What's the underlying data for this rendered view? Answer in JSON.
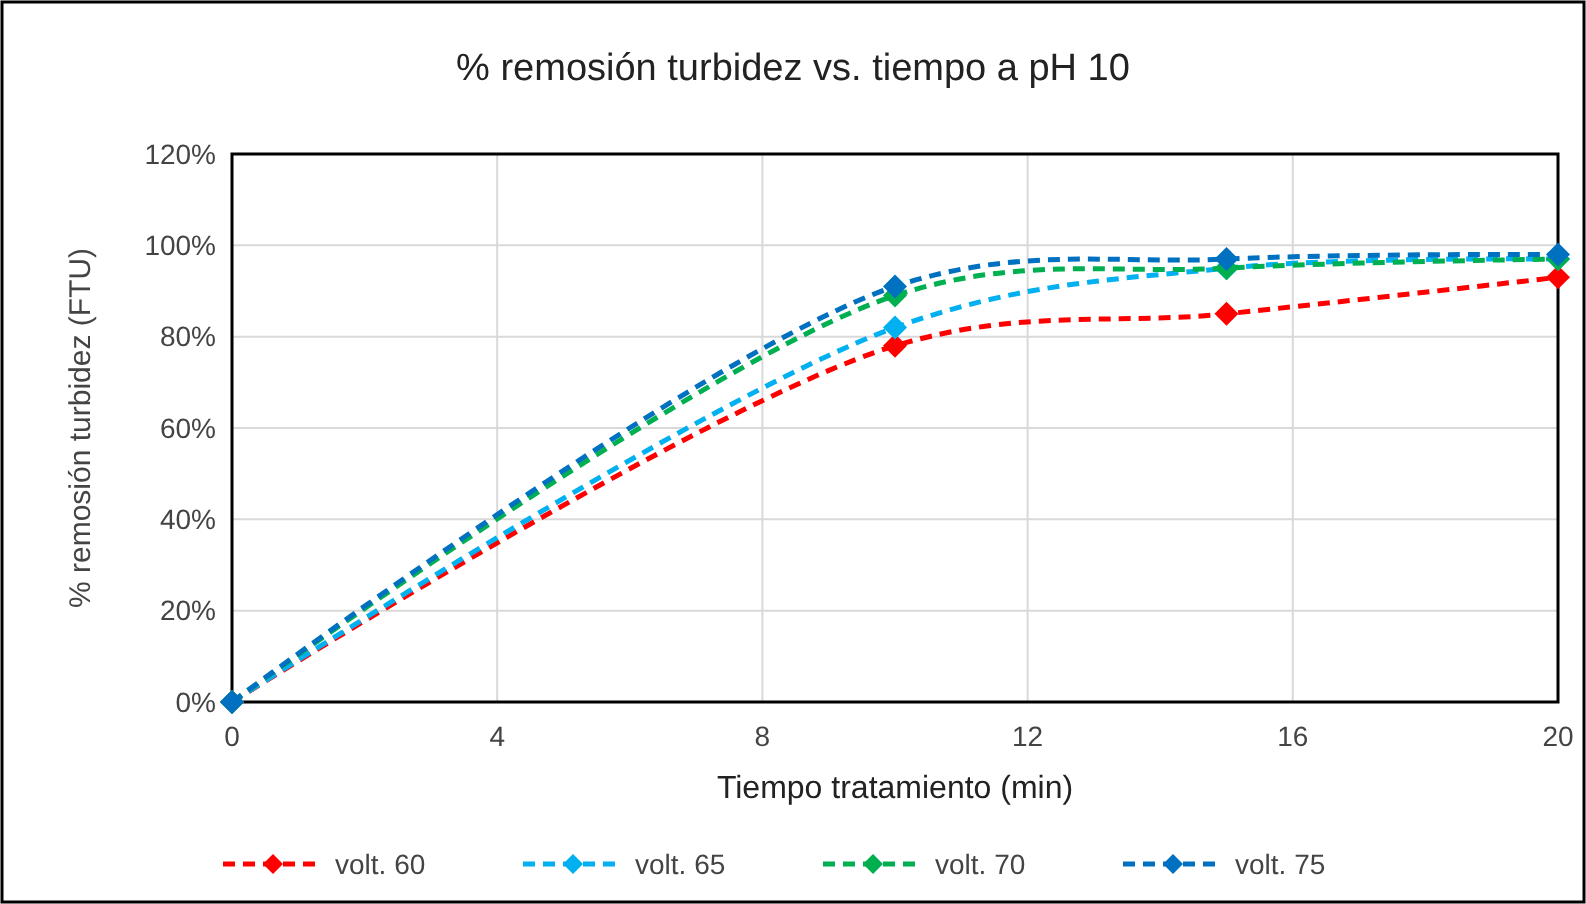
{
  "chart_data": {
    "type": "line",
    "title": "% remosión turbidez vs. tiempo a pH 10",
    "xlabel": "Tiempo tratamiento (min)",
    "ylabel": "% remosión turbidez (FTU)",
    "x": [
      0,
      10,
      15,
      20
    ],
    "series": [
      {
        "name": "volt. 60",
        "color": "#ff0000",
        "values": [
          0,
          78,
          85,
          93
        ]
      },
      {
        "name": "volt. 65",
        "color": "#00b0f0",
        "values": [
          0,
          82,
          95,
          97
        ]
      },
      {
        "name": "volt. 70",
        "color": "#00b050",
        "values": [
          0,
          89,
          95,
          97
        ]
      },
      {
        "name": "volt. 75",
        "color": "#0070c0",
        "values": [
          0,
          91,
          97,
          98
        ]
      }
    ],
    "xlim": [
      0,
      20
    ],
    "xticks": [
      0,
      4,
      8,
      12,
      16,
      20
    ],
    "ylim": [
      0,
      120
    ],
    "yticks": [
      {
        "value": 0,
        "label": "0%"
      },
      {
        "value": 20,
        "label": "20%"
      },
      {
        "value": 40,
        "label": "40%"
      },
      {
        "value": 60,
        "label": "60%"
      },
      {
        "value": 80,
        "label": "80%"
      },
      {
        "value": 100,
        "label": "100%"
      },
      {
        "value": 120,
        "label": "120%"
      }
    ],
    "grid": true,
    "legend": "bottom",
    "marker": "diamond",
    "line_style": "dashed"
  }
}
